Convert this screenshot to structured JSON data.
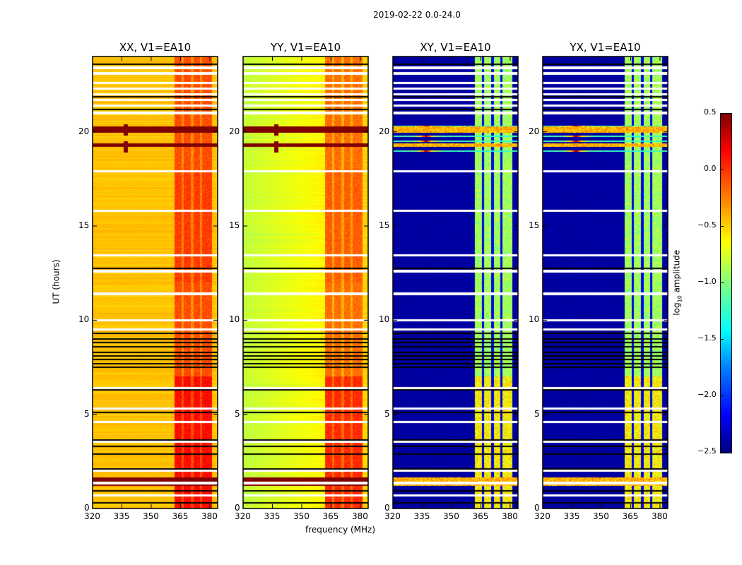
{
  "chart_data": {
    "type": "heatmap",
    "title": "2019-02-22 0.0-24.0",
    "xlabel": "frequency (MHz)",
    "ylabel": "UT (hours)",
    "xlim": [
      320,
      384
    ],
    "ylim": [
      0,
      24
    ],
    "xticks": [
      320,
      335,
      350,
      365,
      380
    ],
    "yticks": [
      0,
      5,
      10,
      15,
      20
    ],
    "panels": [
      {
        "title": "XX, V1=EA10",
        "pol": "XX",
        "baseline_log_amp": -0.45,
        "band_log_amp": -0.1
      },
      {
        "title": "YY, V1=EA10",
        "pol": "YY",
        "baseline_log_amp": -0.7,
        "band_log_amp": -0.2
      },
      {
        "title": "XY, V1=EA10",
        "pol": "XY",
        "baseline_log_amp": -2.4,
        "band_log_amp": -0.9
      },
      {
        "title": "YX, V1=EA10",
        "pol": "YX",
        "baseline_log_amp": -2.4,
        "band_log_amp": -0.9
      }
    ],
    "bright_band_mhz": [
      362,
      381
    ],
    "band_gaps_mhz": [
      366,
      371,
      375.5
    ],
    "flagged_times_hours": [
      23.4,
      23.1,
      22.6,
      22.3,
      22.0,
      21.7,
      21.4,
      21.0,
      17.9,
      15.8,
      13.45,
      12.6,
      11.4,
      10.0,
      9.5,
      6.4,
      5.3,
      4.6,
      3.55,
      2.0,
      1.35,
      0.7
    ],
    "dropout_times_hours": [
      23.6,
      21.85,
      21.2,
      12.75,
      11.35,
      9.3,
      9.0,
      8.8,
      8.6,
      8.3,
      8.1,
      7.9,
      7.7,
      7.5,
      6.3,
      5.1,
      3.65,
      3.3,
      2.9,
      2.1,
      0.95,
      0.3
    ],
    "rfi_times_hours": [
      [
        19.95,
        20.3
      ],
      [
        19.2,
        19.4
      ],
      [
        1.2,
        1.65
      ]
    ],
    "colorbar": {
      "label": "log10 amplitude",
      "min": -2.5,
      "max": 0.5,
      "ticks": [
        "0.5",
        "0.0",
        "−0.5",
        "−1.0",
        "−1.5",
        "−2.0",
        "−2.5"
      ],
      "colormap": "jet"
    }
  }
}
